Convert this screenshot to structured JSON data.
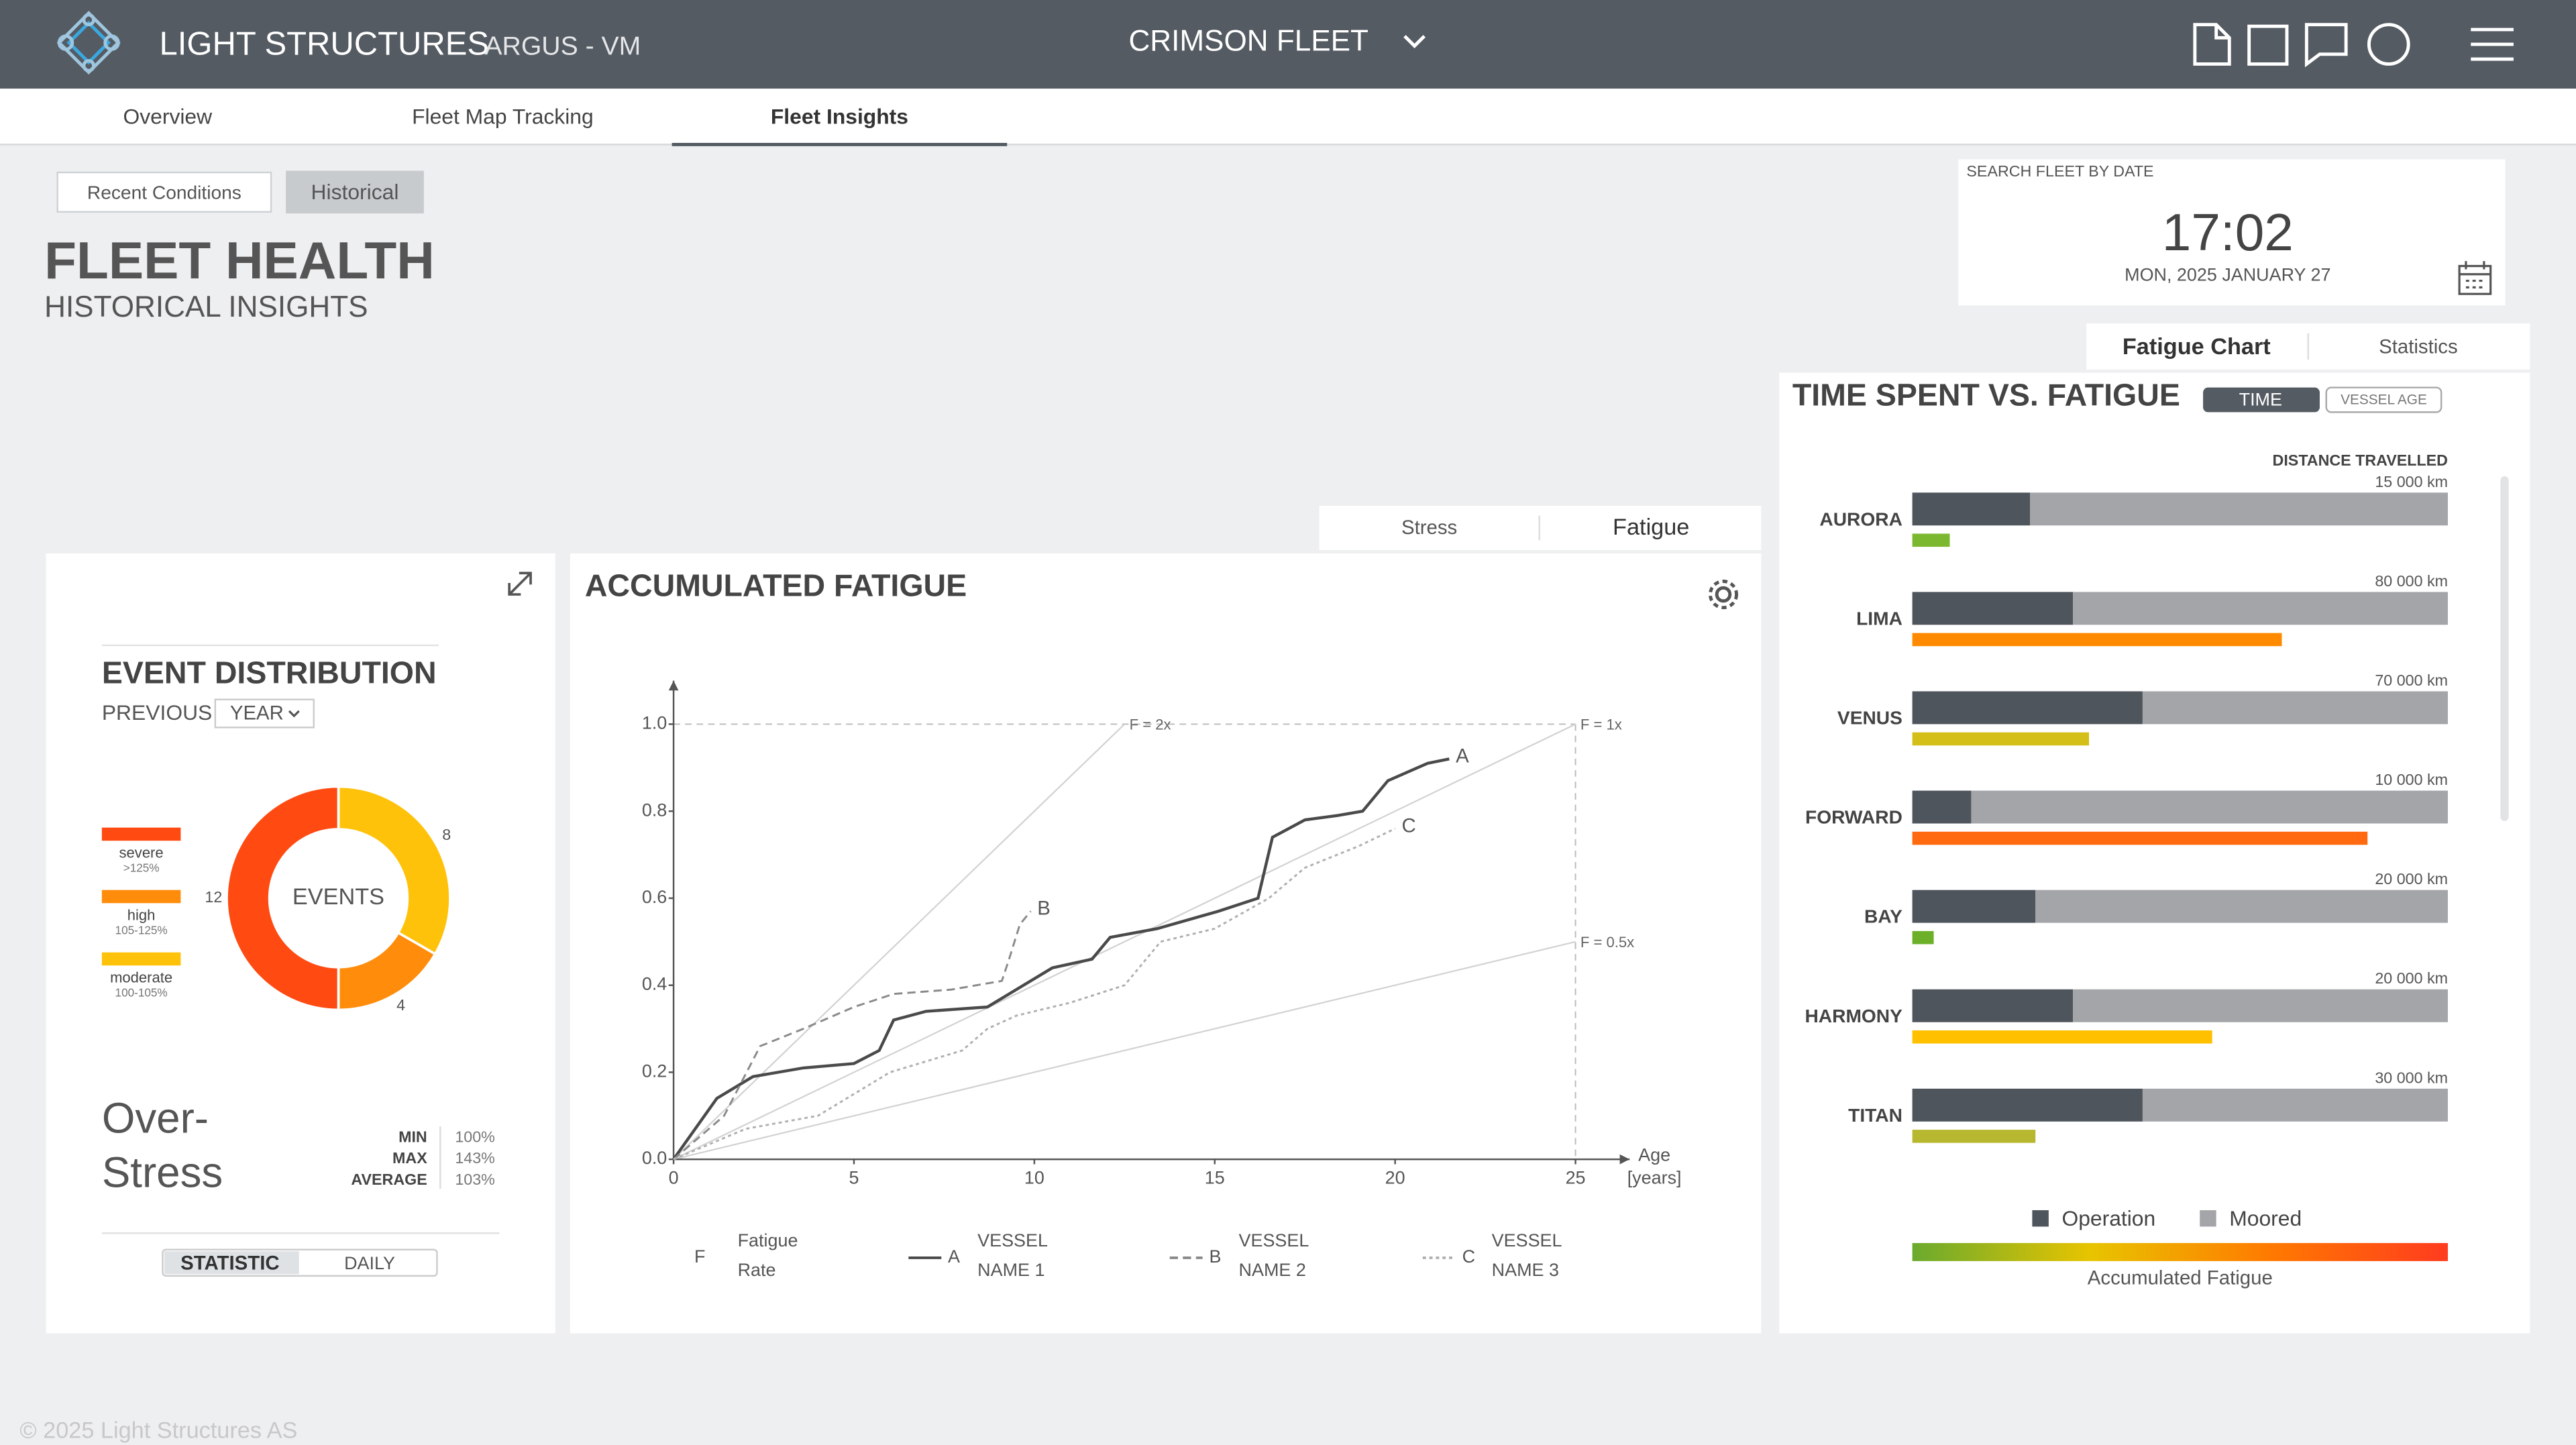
{
  "header": {
    "brand": "LIGHT STRUCTURES",
    "product": "ARGUS - VM",
    "fleet": "CRIMSON FLEET"
  },
  "nav": {
    "tabs": [
      "Overview",
      "Fleet Map Tracking",
      "Fleet Insights"
    ]
  },
  "mode": {
    "tabs": [
      "Recent Conditions",
      "Historical"
    ]
  },
  "page": {
    "title": "FLEET HEALTH",
    "subtitle": "HISTORICAL INSIGHTS"
  },
  "search": {
    "label": "SEARCH FLEET BY DATE",
    "time": "17:02",
    "date": "MON, 2025 JANUARY 27"
  },
  "center_tabs": [
    "Stress",
    "Fatigue"
  ],
  "right_tabs": [
    "Fatigue Chart",
    "Statistics"
  ],
  "event_panel": {
    "previous": "PREVIOUS",
    "period": "YEAR",
    "over_stress": [
      "Over-",
      "Stress"
    ],
    "stats": [
      {
        "label": "MIN",
        "value": "100%"
      },
      {
        "label": "MAX",
        "value": "143%"
      },
      {
        "label": "AVERAGE",
        "value": "103%"
      }
    ],
    "toggle": [
      "STATISTIC",
      "DAILY"
    ]
  },
  "chart_data": [
    {
      "type": "donut",
      "title": "EVENT DISTRIBUTION",
      "center_label": "EVENTS",
      "categories": [
        "severe",
        "high",
        "moderate"
      ],
      "category_notes": [
        ">125%",
        "105-125%",
        "100-105%"
      ],
      "values": [
        12,
        4,
        8
      ],
      "colors": [
        "#ff4a12",
        "#ff8c0a",
        "#ffc20a"
      ]
    },
    {
      "type": "line",
      "title": "ACCUMULATED FATIGUE",
      "xlabel": "Age",
      "xunit": "[years]",
      "xlim": [
        0,
        26.5
      ],
      "ylim": [
        0,
        1.1
      ],
      "xticks": [
        0,
        5,
        10,
        15,
        20,
        25
      ],
      "yticks": [
        {
          "value": 0,
          "label": "0.0"
        },
        0.2,
        0.4,
        0.6,
        0.8,
        {
          "value": 1,
          "label": "1.0"
        }
      ],
      "reference_lines": [
        {
          "label": "F = 2x",
          "x": [
            0,
            12.5
          ],
          "values": [
            0,
            1
          ]
        },
        {
          "label": "F = 1x",
          "x": [
            0,
            25
          ],
          "values": [
            0,
            1
          ]
        },
        {
          "label": "F = 0.5x",
          "x": [
            0,
            25
          ],
          "values": [
            0,
            0.5
          ]
        }
      ],
      "legend": {
        "symbol": "F",
        "label": "Fatigue Rate"
      },
      "series": [
        {
          "name": "VESSEL NAME 1",
          "tag": "A",
          "color": "#4a4a4a",
          "dash": "solid",
          "x": [
            0,
            1.2,
            2.2,
            3.6,
            5,
            5.7,
            6.1,
            7,
            8.7,
            9.3,
            10.5,
            11.6,
            12.1,
            13.4,
            15.1,
            16.2,
            16.6,
            17.5,
            18.4,
            19.1,
            19.8,
            20.9,
            21.5
          ],
          "values": [
            0,
            0.14,
            0.19,
            0.21,
            0.22,
            0.25,
            0.32,
            0.34,
            0.35,
            0.38,
            0.44,
            0.46,
            0.51,
            0.53,
            0.57,
            0.6,
            0.74,
            0.78,
            0.79,
            0.8,
            0.87,
            0.91,
            0.92
          ]
        },
        {
          "name": "VESSEL NAME 2",
          "tag": "B",
          "color": "#8a8a8a",
          "dash": "dashed",
          "x": [
            0,
            1.4,
            2.4,
            3.6,
            5,
            6.1,
            7.7,
            9.1,
            9.3,
            9.6,
            9.9
          ],
          "values": [
            0,
            0.1,
            0.26,
            0.3,
            0.35,
            0.38,
            0.39,
            0.41,
            0.46,
            0.54,
            0.57
          ]
        },
        {
          "name": "VESSEL NAME 3",
          "tag": "C",
          "color": "#b0b0b0",
          "dash": "dotted",
          "x": [
            0,
            2,
            4,
            6,
            8,
            8.7,
            9.5,
            11,
            12.5,
            13.5,
            15,
            16.5,
            17.5,
            19,
            20
          ],
          "values": [
            0,
            0.07,
            0.1,
            0.2,
            0.25,
            0.3,
            0.33,
            0.36,
            0.4,
            0.5,
            0.53,
            0.6,
            0.67,
            0.72,
            0.76
          ]
        }
      ]
    },
    {
      "type": "bar",
      "title": "TIME SPENT VS. FATIGUE",
      "toggles": [
        "TIME",
        "VESSEL AGE"
      ],
      "distance_title": "DISTANCE TRAVELLED",
      "categories": [
        "AURORA",
        "LIMA",
        "VENUS",
        "FORWARD",
        "BAY",
        "HARMONY",
        "TITAN"
      ],
      "distances": [
        "15 000 km",
        "80 000 km",
        "70 000 km",
        "10 000 km",
        "20 000 km",
        "20 000 km",
        "30 000 km"
      ],
      "series": [
        {
          "name": "Operation",
          "color": "#4f555c",
          "values": [
            22,
            30,
            43,
            11,
            23,
            30,
            43
          ]
        },
        {
          "name": "Moored",
          "color": "#a3a5a8",
          "values": [
            78,
            70,
            57,
            89,
            77,
            70,
            57
          ]
        }
      ],
      "fatigue": {
        "name": "Accumulated Fatigue",
        "values": [
          7,
          69,
          33,
          85,
          4,
          56,
          23
        ],
        "colors": [
          "#7cb82f",
          "#ff8a00",
          "#d4bf18",
          "#ff6a10",
          "#6cb02a",
          "#ffc000",
          "#b8b830"
        ],
        "gradient": [
          "#6aaa2e",
          "#e8c400",
          "#ff7a00",
          "#ff3b1f"
        ]
      }
    }
  ],
  "footer": "© 2025 Light Structures AS"
}
